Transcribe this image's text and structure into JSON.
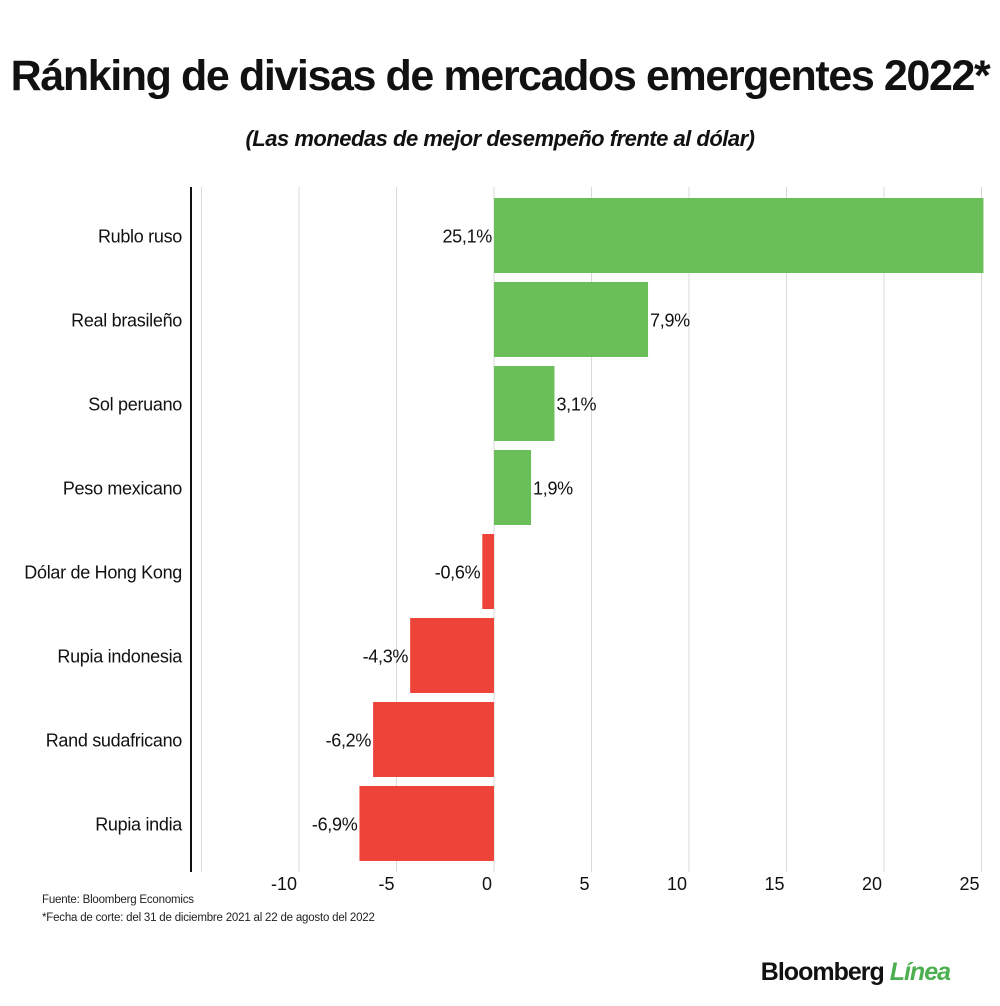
{
  "chart_data": {
    "type": "bar",
    "orientation": "horizontal",
    "title": "Ránking de divisas de mercados emergentes 2022*",
    "subtitle": "(Las monedas de mejor desempeño frente al dólar)",
    "categories": [
      "Rublo ruso",
      "Real brasileño",
      "Sol peruano",
      "Peso mexicano",
      "Dólar de Hong Kong",
      "Rupia indonesia",
      "Rand sudafricano",
      "Rupia india"
    ],
    "values": [
      25.1,
      7.9,
      3.1,
      1.9,
      -0.6,
      -4.3,
      -6.2,
      -6.9
    ],
    "value_labels": [
      "25,1%",
      "7,9%",
      "3,1%",
      "1,9%",
      "-0,6%",
      "-4,3%",
      "-6,2%",
      "-6,9%"
    ],
    "xlim": [
      -15,
      25
    ],
    "xticks": [
      -10,
      -5,
      0,
      5,
      10,
      15,
      20,
      25
    ],
    "xtick_labels": [
      "-10",
      "-5",
      "0",
      "5",
      "10",
      "15",
      "20",
      "25"
    ],
    "grid": true,
    "colors": {
      "positive": "#6abf59",
      "negative": "#ee4338"
    }
  },
  "footer": {
    "source": "Fuente: Bloomberg Economics",
    "note": "*Fecha de corte: del 31 de diciembre 2021 al 22 de agosto del 2022"
  },
  "brand": {
    "name": "Bloomberg",
    "accent": "Línea"
  }
}
